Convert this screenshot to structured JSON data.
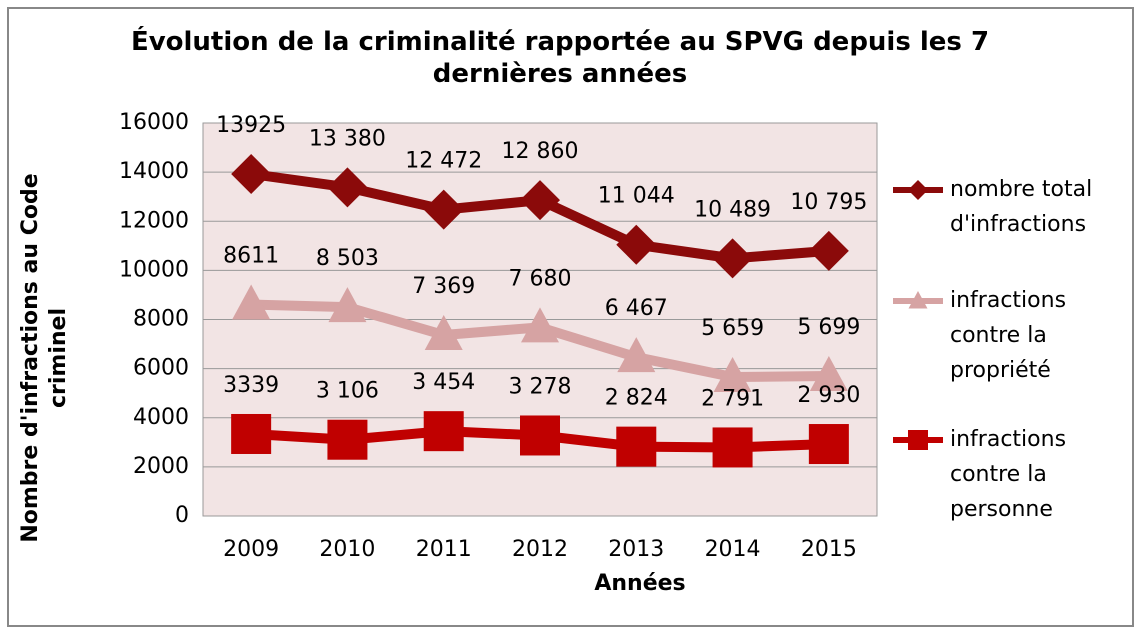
{
  "chart_data": {
    "type": "line",
    "title": "Évolution de la criminalité rapportée au SPVG depuis les 7 dernières années",
    "x_label": "Années",
    "y_label": "Nombre d'infractions au Code criminel",
    "categories": [
      "2009",
      "2010",
      "2011",
      "2012",
      "2013",
      "2014",
      "2015"
    ],
    "ylim": [
      0,
      16000
    ],
    "yticks": [
      0,
      2000,
      4000,
      6000,
      8000,
      10000,
      12000,
      14000,
      16000
    ],
    "grid": true,
    "legend": "right",
    "series": [
      {
        "name": "nombre total d'infractions",
        "color": "#8b0a0a",
        "marker": "diamond",
        "values": [
          13925,
          13380,
          12472,
          12860,
          11044,
          10489,
          10795
        ],
        "value_labels": [
          "13925",
          "13 380",
          "12 472",
          "12 860",
          "11 044",
          "10 489",
          "10 795"
        ]
      },
      {
        "name": "infractions contre la propriété",
        "color": "#d6a3a3",
        "marker": "triangle",
        "values": [
          8611,
          8503,
          7369,
          7680,
          6467,
          5659,
          5699
        ],
        "value_labels": [
          "8611",
          "8 503",
          "7 369",
          "7 680",
          "6 467",
          "5 659",
          "5 699"
        ]
      },
      {
        "name": "infractions contre la personne",
        "color": "#c00000",
        "marker": "square",
        "values": [
          3339,
          3106,
          3454,
          3278,
          2824,
          2791,
          2930
        ],
        "value_labels": [
          "3339",
          "3 106",
          "3 454",
          "3 278",
          "2 824",
          "2 791",
          "2 930"
        ]
      }
    ]
  }
}
